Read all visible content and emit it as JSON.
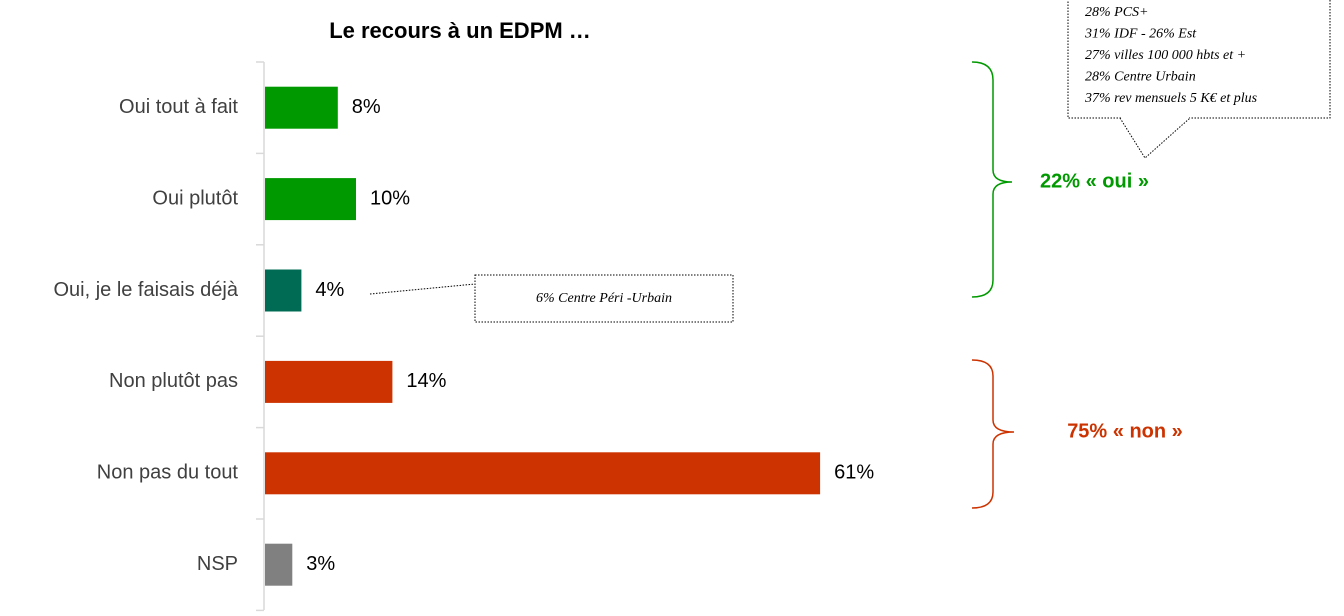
{
  "chart_data": {
    "type": "bar",
    "orientation": "horizontal",
    "title": "Le recours à un EDPM …",
    "categories": [
      "Oui tout à fait",
      "Oui plutôt",
      "Oui, je le faisais déjà",
      "Non plutôt pas",
      "Non pas du tout",
      "NSP"
    ],
    "values": [
      8,
      10,
      4,
      14,
      61,
      3
    ],
    "value_labels": [
      "8%",
      "10%",
      "4%",
      "14%",
      "61%",
      "3%"
    ],
    "colors": [
      "#009900",
      "#009900",
      "#006B54",
      "#CC3300",
      "#CC3300",
      "#808080"
    ],
    "callout_lines": [
      "28% PCS+",
      "31% IDF - 26% Est",
      "27% villes 100 000 hbts et +",
      "28% Centre Urbain",
      "37% rev mensuels 5 K€ et plus"
    ],
    "note": "6% Centre Péri -Urbain",
    "groups": [
      {
        "label": "22% « oui »",
        "color": "#009900"
      },
      {
        "label": "75% « non »",
        "color": "#CC3300"
      }
    ]
  }
}
